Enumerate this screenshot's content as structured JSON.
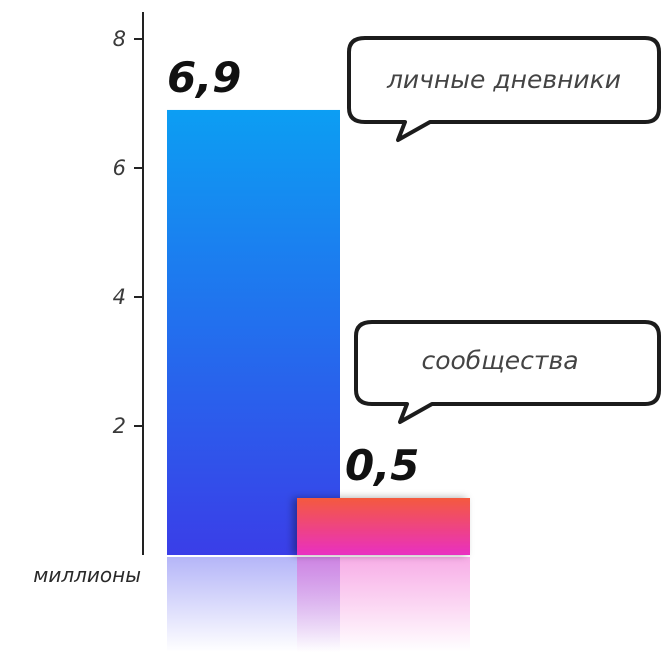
{
  "chart_data": {
    "type": "bar",
    "categories": [
      "личные дневники",
      "сообщества"
    ],
    "values": [
      6.9,
      0.5
    ],
    "data_labels": [
      "6,9",
      "0,5"
    ],
    "ylabel": "миллионы",
    "ylim": [
      0,
      8.6
    ],
    "yticks": [
      2,
      4,
      6,
      8
    ],
    "grid": false,
    "legend": "callout bubbles, top-right",
    "colors": {
      "bar_1_top": "#0c9ef3",
      "bar_1_bottom": "#3a3ee8",
      "bar_2_top": "#f45a3e",
      "bar_2_bottom": "#e92fc2",
      "axis": "#222222"
    }
  }
}
